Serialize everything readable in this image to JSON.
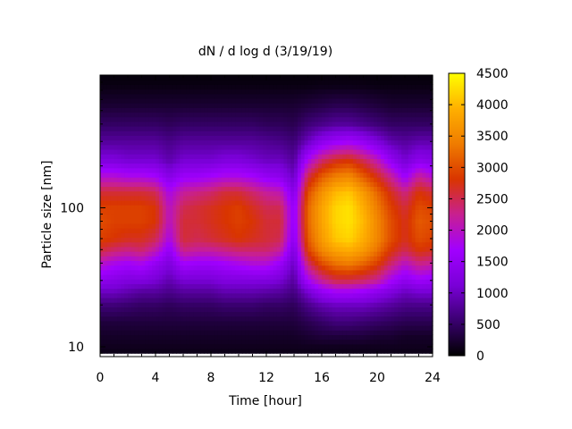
{
  "chart_data": {
    "type": "heatmap",
    "title": "dN / d log d (3/19/19)",
    "xlabel": "Time [hour]",
    "ylabel": "Particle size [nm]",
    "xlim": [
      0,
      24
    ],
    "ylim": [
      8.5,
      900
    ],
    "y_scale": "log",
    "x_ticks": [
      0,
      4,
      8,
      12,
      16,
      20,
      24
    ],
    "y_ticks": [
      10,
      100
    ],
    "colorbar": {
      "range": [
        0,
        4500
      ],
      "ticks": [
        0,
        500,
        1000,
        1500,
        2000,
        2500,
        3000,
        3500,
        4000,
        4500
      ],
      "colormap": [
        "#000000",
        "#3a0070",
        "#7a00d8",
        "#a100ff",
        "#c82090",
        "#d93500",
        "#ef7c00",
        "#ffb000",
        "#ffff00"
      ]
    },
    "hours": [
      0,
      1,
      2,
      3,
      4,
      5,
      6,
      7,
      8,
      9,
      10,
      11,
      12,
      13,
      14,
      15,
      16,
      17,
      18,
      19,
      20,
      21,
      22,
      23,
      24
    ],
    "sizes_nm": [
      9,
      10,
      12,
      15,
      20,
      25,
      30,
      40,
      50,
      60,
      80,
      100,
      130,
      170,
      220,
      300,
      400,
      550,
      750,
      900
    ],
    "values": [
      [
        100,
        150,
        200,
        300,
        600,
        1000,
        1400,
        2000,
        2600,
        2900,
        3000,
        2900,
        2600,
        1900,
        1200,
        800,
        500,
        250,
        100,
        50
      ],
      [
        100,
        150,
        200,
        300,
        600,
        1000,
        1300,
        1800,
        2400,
        2800,
        2900,
        2900,
        2600,
        1900,
        1200,
        800,
        500,
        250,
        100,
        50
      ],
      [
        100,
        150,
        200,
        300,
        550,
        900,
        1200,
        1700,
        2300,
        2700,
        2900,
        2900,
        2600,
        1800,
        1100,
        800,
        500,
        250,
        100,
        50
      ],
      [
        100,
        150,
        200,
        300,
        500,
        800,
        1200,
        1800,
        2400,
        2700,
        2900,
        2900,
        2600,
        1800,
        1100,
        800,
        500,
        250,
        100,
        50
      ],
      [
        100,
        150,
        200,
        300,
        500,
        800,
        1100,
        1500,
        2100,
        2500,
        2800,
        2800,
        2500,
        1700,
        1100,
        800,
        500,
        250,
        100,
        50
      ],
      [
        100,
        150,
        200,
        300,
        450,
        700,
        900,
        1200,
        1500,
        1800,
        2000,
        2000,
        1800,
        1300,
        900,
        700,
        450,
        250,
        100,
        50
      ],
      [
        100,
        150,
        200,
        300,
        500,
        800,
        1100,
        1700,
        2300,
        2600,
        2600,
        2500,
        2200,
        1600,
        1100,
        800,
        500,
        250,
        100,
        50
      ],
      [
        100,
        150,
        200,
        300,
        500,
        800,
        1100,
        1600,
        2200,
        2500,
        2600,
        2600,
        2300,
        1600,
        1100,
        800,
        500,
        250,
        100,
        50
      ],
      [
        100,
        150,
        200,
        300,
        500,
        800,
        1100,
        1600,
        2200,
        2600,
        2700,
        2700,
        2400,
        1700,
        1100,
        800,
        500,
        250,
        100,
        50
      ],
      [
        100,
        150,
        200,
        300,
        550,
        900,
        1200,
        1700,
        2300,
        2700,
        2800,
        2800,
        2600,
        1800,
        1200,
        800,
        500,
        250,
        100,
        50
      ],
      [
        100,
        150,
        200,
        300,
        550,
        900,
        1200,
        1800,
        2400,
        2800,
        2900,
        2900,
        2600,
        1800,
        1200,
        800,
        500,
        250,
        100,
        50
      ],
      [
        100,
        150,
        200,
        300,
        550,
        900,
        1200,
        1900,
        2400,
        2700,
        2800,
        2700,
        2400,
        1700,
        1100,
        800,
        500,
        250,
        100,
        50
      ],
      [
        100,
        150,
        200,
        300,
        500,
        850,
        1200,
        1900,
        2400,
        2600,
        2600,
        2500,
        2200,
        1500,
        1000,
        750,
        450,
        250,
        100,
        50
      ],
      [
        100,
        150,
        200,
        300,
        500,
        800,
        1100,
        1600,
        2200,
        2500,
        2600,
        2500,
        2100,
        1400,
        1000,
        700,
        450,
        250,
        100,
        50
      ],
      [
        100,
        150,
        200,
        300,
        450,
        650,
        800,
        1000,
        1200,
        1400,
        1500,
        1500,
        1300,
        1000,
        800,
        600,
        400,
        250,
        100,
        50
      ],
      [
        100,
        150,
        250,
        400,
        700,
        1100,
        1700,
        2400,
        2900,
        3100,
        3200,
        3200,
        3000,
        2500,
        1800,
        1000,
        600,
        300,
        100,
        50
      ],
      [
        100,
        150,
        300,
        500,
        900,
        1500,
        2200,
        3000,
        3500,
        3700,
        3800,
        3800,
        3600,
        3100,
        2400,
        1400,
        700,
        350,
        120,
        50
      ],
      [
        100,
        150,
        300,
        600,
        1000,
        1700,
        2500,
        3300,
        3800,
        4100,
        4200,
        4200,
        4000,
        3400,
        2700,
        1600,
        800,
        400,
        120,
        50
      ],
      [
        100,
        150,
        300,
        600,
        1000,
        1700,
        2500,
        3400,
        3900,
        4200,
        4300,
        4300,
        4100,
        3500,
        2800,
        1700,
        800,
        400,
        120,
        50
      ],
      [
        100,
        150,
        300,
        550,
        1000,
        1600,
        2400,
        3200,
        3700,
        3900,
        4000,
        3900,
        3700,
        3100,
        2500,
        1500,
        700,
        350,
        120,
        50
      ],
      [
        100,
        150,
        250,
        500,
        900,
        1400,
        2200,
        2900,
        3300,
        3500,
        3500,
        3400,
        3200,
        2700,
        2100,
        1200,
        600,
        300,
        100,
        50
      ],
      [
        100,
        150,
        250,
        450,
        800,
        1200,
        1700,
        2400,
        2800,
        3000,
        3000,
        2900,
        2700,
        2200,
        1500,
        900,
        500,
        250,
        100,
        50
      ],
      [
        100,
        150,
        200,
        400,
        700,
        1000,
        1400,
        2000,
        2500,
        2700,
        2700,
        2600,
        2300,
        1600,
        1100,
        800,
        500,
        250,
        100,
        50
      ],
      [
        100,
        150,
        200,
        400,
        700,
        1100,
        1600,
        2300,
        2800,
        3000,
        3100,
        3000,
        2800,
        2200,
        1400,
        900,
        500,
        250,
        100,
        50
      ],
      [
        100,
        150,
        200,
        400,
        700,
        1100,
        1500,
        2200,
        2700,
        2900,
        3000,
        2900,
        2600,
        1900,
        1300,
        900,
        500,
        250,
        100,
        50
      ]
    ]
  }
}
